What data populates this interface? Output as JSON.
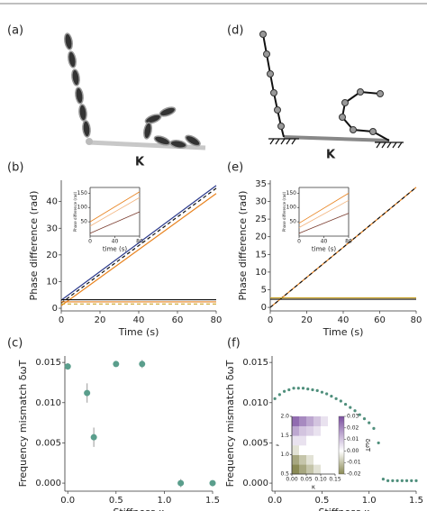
{
  "panels": {
    "a": {
      "label": "(a)",
      "annotation": "K"
    },
    "d": {
      "label": "(d)",
      "annotation": "K"
    }
  },
  "chart_data": [
    {
      "type": "line",
      "panel_label": "(b)",
      "xlabel": "Time (s)",
      "ylabel": "Phase difference (rad)",
      "xlim": [
        0,
        80
      ],
      "ylim": [
        -1,
        48
      ],
      "xticks": [
        0,
        20,
        40,
        60,
        80
      ],
      "yticks": [
        0,
        10,
        20,
        30,
        40
      ],
      "x": [
        0,
        80
      ],
      "series": [
        {
          "color": "#2b3a8c",
          "values": [
            3,
            46
          ],
          "dash": false
        },
        {
          "color": "#111111",
          "values": [
            2,
            45
          ],
          "dash": true
        },
        {
          "color": "#e8821e",
          "values": [
            1,
            43
          ],
          "dash": false
        },
        {
          "color": "#111111",
          "values": [
            3.2,
            3.2
          ],
          "dash": false
        },
        {
          "color": "#e8821e",
          "values": [
            2.4,
            2.4
          ],
          "dash": false
        },
        {
          "color": "#c9a227",
          "values": [
            1.6,
            1.6
          ],
          "dash": true
        }
      ],
      "inset": {
        "type": "line",
        "xlabel": "time (s)",
        "ylabel": "Phase difference (rad)",
        "xlim": [
          0,
          80
        ],
        "ylim": [
          0,
          170
        ],
        "xticks": [
          0,
          40,
          80
        ],
        "yticks": [
          50,
          100,
          150
        ],
        "x": [
          0,
          80
        ],
        "series": [
          {
            "color": "#e8821e",
            "values": [
              50,
              155
            ],
            "dash": false
          },
          {
            "color": "#f2b27a",
            "values": [
              35,
              135
            ],
            "dash": false
          },
          {
            "color": "#7a3b2e",
            "values": [
              10,
              85
            ],
            "dash": false
          }
        ]
      }
    },
    {
      "type": "line",
      "panel_label": "(e)",
      "xlabel": "Time (s)",
      "ylabel": "Phase difference (rad)",
      "xlim": [
        0,
        80
      ],
      "ylim": [
        -1,
        36
      ],
      "xticks": [
        0,
        20,
        40,
        60,
        80
      ],
      "yticks": [
        0,
        5,
        10,
        15,
        20,
        25,
        30,
        35
      ],
      "x": [
        0,
        80
      ],
      "series": [
        {
          "color": "#e8821e",
          "values": [
            0,
            34
          ],
          "dash": false
        },
        {
          "color": "#111111",
          "values": [
            0,
            34
          ],
          "dash": true
        },
        {
          "color": "#c9a227",
          "values": [
            2.7,
            2.7
          ],
          "dash": false
        },
        {
          "color": "#111111",
          "values": [
            2.3,
            2.3
          ],
          "dash": false
        }
      ],
      "inset": {
        "type": "line",
        "xlabel": "time (s)",
        "ylabel": "Phase difference (rad)",
        "xlim": [
          0,
          80
        ],
        "ylim": [
          0,
          170
        ],
        "xticks": [
          0,
          40,
          80
        ],
        "yticks": [
          50,
          100,
          150
        ],
        "x": [
          0,
          80
        ],
        "series": [
          {
            "color": "#e8821e",
            "values": [
              45,
              150
            ],
            "dash": false
          },
          {
            "color": "#f2b27a",
            "values": [
              30,
              125
            ],
            "dash": false
          },
          {
            "color": "#7a3b2e",
            "values": [
              10,
              80
            ],
            "dash": false
          }
        ]
      }
    },
    {
      "type": "scatter",
      "panel_label": "(c)",
      "xlabel": "Stiffness κ",
      "ylabel": "Frequency mismatch δωT",
      "xlim": [
        -0.03,
        1.5
      ],
      "ylim": [
        -0.001,
        0.0158
      ],
      "xticks": [
        {
          "value": 0,
          "label": "0.0"
        },
        0.5,
        {
          "value": 1,
          "label": "1.0"
        },
        1.5
      ],
      "yticks": [
        {
          "value": 0,
          "label": "0.000"
        },
        0.005,
        {
          "value": 0.01,
          "label": "0.010"
        },
        0.015
      ],
      "color": "#5a9e8c",
      "x": [
        0,
        0.2,
        0.27,
        0.5,
        0.77,
        1.17,
        1.5
      ],
      "values": [
        0.0145,
        0.0112,
        0.0057,
        0.0148,
        0.0148,
        0,
        0
      ],
      "errors": [
        0.0004,
        0.0012,
        0.0012,
        0.0003,
        0.0005,
        0.0005,
        0.0002
      ]
    },
    {
      "type": "scatter",
      "panel_label": "(f)",
      "xlabel": "Stiffness κ",
      "ylabel": "Frequency mismatch δωT",
      "xlim": [
        -0.03,
        1.5
      ],
      "ylim": [
        -0.001,
        0.0158
      ],
      "xticks": [
        {
          "value": 0,
          "label": "0.0"
        },
        0.5,
        {
          "value": 1,
          "label": "1.0"
        },
        1.5
      ],
      "yticks": [
        {
          "value": 0,
          "label": "0.000"
        },
        0.005,
        {
          "value": 0.01,
          "label": "0.010"
        },
        0.015
      ],
      "color": "#4f8f7c",
      "x": [
        0,
        0.05,
        0.1,
        0.15,
        0.2,
        0.25,
        0.3,
        0.35,
        0.4,
        0.45,
        0.5,
        0.55,
        0.6,
        0.65,
        0.7,
        0.75,
        0.8,
        0.85,
        0.9,
        0.95,
        1,
        1.05,
        1.1,
        1.15,
        1.2,
        1.25,
        1.3,
        1.35,
        1.4,
        1.45,
        1.5
      ],
      "values": [
        0.0105,
        0.011,
        0.0114,
        0.0116,
        0.0118,
        0.0118,
        0.0118,
        0.0117,
        0.0116,
        0.0115,
        0.0113,
        0.0111,
        0.0108,
        0.0105,
        0.0102,
        0.0098,
        0.0094,
        0.009,
        0.0085,
        0.008,
        0.0075,
        0.0068,
        0.005,
        0.0005,
        0.0003,
        0.0003,
        0.0003,
        0.0003,
        0.0003,
        0.0003,
        0.0003
      ],
      "inset": {
        "type": "heatmap",
        "xlabel": "κ",
        "ylabel": "ρ",
        "clabel": "δωT",
        "xlim": [
          0,
          0.15
        ],
        "ylim": [
          0.5,
          2
        ],
        "xticks": [
          {
            "value": 0,
            "label": "0.00"
          },
          0.05,
          {
            "value": 0.1,
            "label": "0.10"
          },
          0.15
        ],
        "yticks": [
          0.5,
          {
            "value": 1,
            "label": "1.0"
          },
          1.5,
          {
            "value": 2,
            "label": "2.0"
          }
        ],
        "clim": [
          -0.02,
          0.03
        ],
        "cticks": [
          0.03,
          0.02,
          0.01,
          {
            "value": 0,
            "label": "0.00"
          },
          -0.01,
          -0.02
        ],
        "z": [
          [
            -0.02,
            -0.015,
            -0.01,
            -0.005,
            0,
            0
          ],
          [
            -0.015,
            -0.01,
            -0.005,
            0,
            0,
            0
          ],
          [
            -0.005,
            0,
            0,
            0,
            0,
            0
          ],
          [
            0.005,
            0.005,
            0,
            0,
            0,
            0
          ],
          [
            0.015,
            0.01,
            0.008,
            0.005,
            0,
            0
          ],
          [
            0.025,
            0.02,
            0.015,
            0.01,
            0.005,
            0
          ]
        ]
      }
    }
  ]
}
